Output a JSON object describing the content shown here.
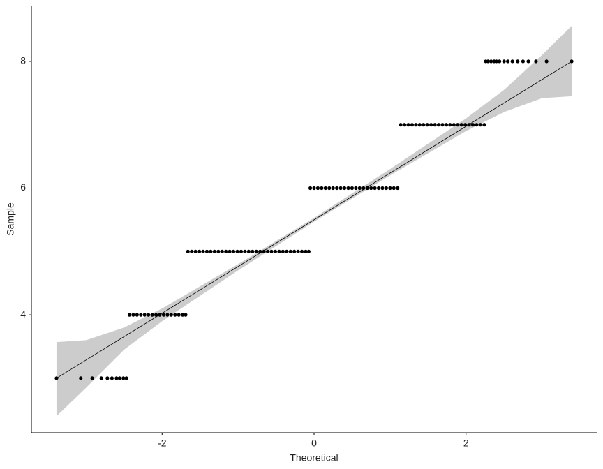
{
  "chart_data": {
    "type": "qq",
    "x_label": "Theoretical",
    "y_label": "Sample",
    "xlim": [
      -3.72,
      3.72
    ],
    "ylim": [
      2.14,
      8.88
    ],
    "xticks": [
      -2,
      0,
      2
    ],
    "yticks": [
      4,
      6,
      8
    ],
    "point_color": "#000000",
    "line_color": "#000000",
    "band_color": "#cccccc",
    "groups": [
      {
        "sample": 3,
        "x": [
          -3.39,
          -3.07,
          -2.92,
          -2.8,
          -2.72,
          -2.66,
          -2.6,
          -2.56,
          -2.51,
          -2.47
        ]
      },
      {
        "sample": 4,
        "x": [
          -2.43,
          -2.38,
          -2.33,
          -2.28,
          -2.23,
          -2.18,
          -2.13,
          -2.08,
          -2.03,
          -1.98,
          -1.93,
          -1.88,
          -1.83,
          -1.78,
          -1.73,
          -1.69
        ]
      },
      {
        "sample": 5,
        "x": [
          -1.66,
          -1.61,
          -1.56,
          -1.51,
          -1.46,
          -1.41,
          -1.36,
          -1.31,
          -1.26,
          -1.21,
          -1.16,
          -1.11,
          -1.06,
          -1.01,
          -0.96,
          -0.91,
          -0.86,
          -0.81,
          -0.76,
          -0.71,
          -0.66,
          -0.61,
          -0.56,
          -0.51,
          -0.46,
          -0.41,
          -0.36,
          -0.31,
          -0.26,
          -0.21,
          -0.16,
          -0.11,
          -0.07
        ]
      },
      {
        "sample": 6,
        "x": [
          -0.05,
          0,
          0.05,
          0.1,
          0.15,
          0.2,
          0.25,
          0.3,
          0.35,
          0.4,
          0.45,
          0.5,
          0.55,
          0.6,
          0.65,
          0.7,
          0.75,
          0.8,
          0.85,
          0.9,
          0.95,
          1,
          1.05,
          1.1
        ]
      },
      {
        "sample": 7,
        "x": [
          1.14,
          1.19,
          1.24,
          1.29,
          1.34,
          1.39,
          1.44,
          1.49,
          1.54,
          1.59,
          1.64,
          1.69,
          1.74,
          1.79,
          1.84,
          1.89,
          1.94,
          1.99,
          2.04,
          2.09,
          2.14,
          2.19,
          2.24
        ]
      },
      {
        "sample": 8,
        "x": [
          2.26,
          2.29,
          2.33,
          2.37,
          2.4,
          2.44,
          2.5,
          2.55,
          2.61,
          2.68,
          2.75,
          2.82,
          2.92,
          3.06,
          3.39
        ]
      }
    ],
    "reference_line": {
      "x": [
        -3.39,
        3.39
      ],
      "values": [
        3,
        8
      ]
    },
    "band": {
      "x": [
        -3.39,
        -3,
        -2.5,
        -2,
        -1,
        0,
        1,
        2,
        2.5,
        3,
        3.39
      ],
      "lower": [
        2.4,
        2.85,
        3.45,
        3.9,
        4.7,
        5.47,
        6.2,
        6.9,
        7.2,
        7.42,
        7.45
      ],
      "upper": [
        3.57,
        3.6,
        3.8,
        4.1,
        4.8,
        5.53,
        6.3,
        7.1,
        7.55,
        8.1,
        8.56
      ]
    }
  }
}
